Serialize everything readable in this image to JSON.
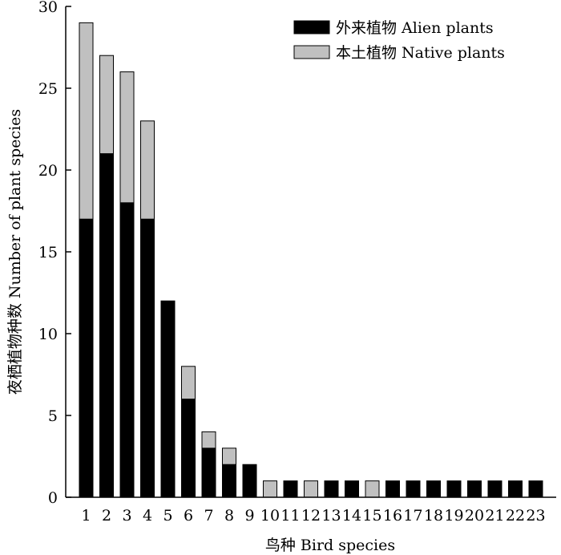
{
  "chart_data": {
    "type": "bar",
    "stacked": true,
    "xlabel": "鸟种 Bird species",
    "ylabel": "夜栖植物种数 Number of plant species",
    "ylim": [
      0,
      30
    ],
    "yticks": [
      0,
      5,
      10,
      15,
      20,
      25,
      30
    ],
    "categories": [
      "1",
      "2",
      "3",
      "4",
      "5",
      "6",
      "7",
      "8",
      "9",
      "10",
      "11",
      "12",
      "13",
      "14",
      "15",
      "16",
      "17",
      "18",
      "19",
      "20",
      "21",
      "22",
      "23"
    ],
    "series": [
      {
        "name": "外来植物 Alien plants",
        "color": "#000000",
        "values": [
          17,
          21,
          18,
          17,
          12,
          6,
          3,
          2,
          2,
          0,
          1,
          0,
          1,
          1,
          0,
          1,
          1,
          1,
          1,
          1,
          1,
          1,
          1
        ]
      },
      {
        "name": "本土植物 Native plants",
        "color": "#c0c0c0",
        "values": [
          12,
          6,
          8,
          6,
          0,
          2,
          1,
          1,
          0,
          1,
          0,
          1,
          0,
          0,
          1,
          0,
          0,
          0,
          0,
          0,
          0,
          0,
          0
        ]
      }
    ],
    "legend_position": "top-right",
    "grid": false
  }
}
